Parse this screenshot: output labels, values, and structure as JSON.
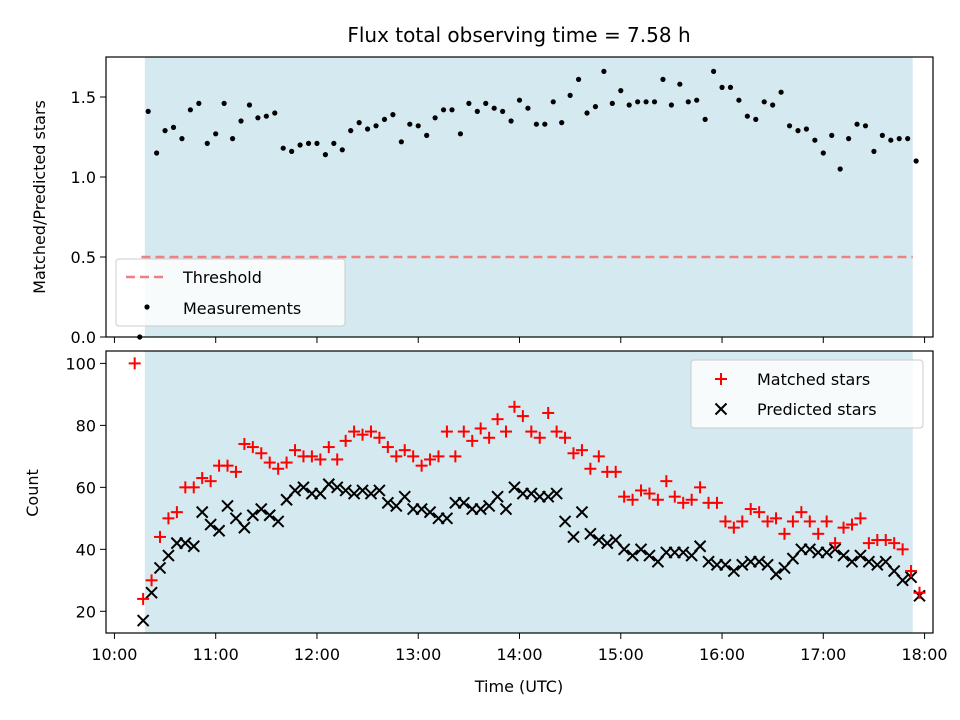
{
  "title": "Flux total observing time = 7.58 h",
  "colors": {
    "band": "#d4eaf0",
    "threshold": "#f08080",
    "matched": "#ff0000",
    "predicted": "#000000",
    "measurements": "#000000"
  },
  "chart_data": [
    {
      "type": "scatter",
      "panel": "top",
      "ylabel": "Matched/Predicted stars",
      "ylim": [
        0,
        1.75
      ],
      "yticks": [
        "0.0",
        "0.5",
        "1.0",
        "1.5"
      ],
      "xlim": [
        "09:55",
        "18:05"
      ],
      "shaded_band": [
        "10:18",
        "17:53"
      ],
      "threshold": 0.5,
      "legend_position": "lower-left",
      "legend": {
        "threshold": "Threshold",
        "measurements": "Measurements"
      },
      "series": [
        {
          "name": "Measurements",
          "x": [
            "10:15",
            "10:20",
            "10:25",
            "10:30",
            "10:35",
            "10:40",
            "10:45",
            "10:50",
            "10:55",
            "11:00",
            "11:05",
            "11:10",
            "11:15",
            "11:20",
            "11:25",
            "11:30",
            "11:35",
            "11:40",
            "11:45",
            "11:50",
            "11:55",
            "12:00",
            "12:05",
            "12:10",
            "12:15",
            "12:20",
            "12:25",
            "12:30",
            "12:35",
            "12:40",
            "12:45",
            "12:50",
            "12:55",
            "13:00",
            "13:05",
            "13:10",
            "13:15",
            "13:20",
            "13:25",
            "13:30",
            "13:35",
            "13:40",
            "13:45",
            "13:50",
            "13:55",
            "14:00",
            "14:05",
            "14:10",
            "14:15",
            "14:20",
            "14:25",
            "14:30",
            "14:35",
            "14:40",
            "14:45",
            "14:50",
            "14:55",
            "15:00",
            "15:05",
            "15:10",
            "15:15",
            "15:20",
            "15:25",
            "15:30",
            "15:35",
            "15:40",
            "15:45",
            "15:50",
            "15:55",
            "16:00",
            "16:05",
            "16:10",
            "16:15",
            "16:20",
            "16:25",
            "16:30",
            "16:35",
            "16:40",
            "16:45",
            "16:50",
            "16:55",
            "17:00",
            "17:05",
            "17:10",
            "17:15",
            "17:20",
            "17:25",
            "17:30",
            "17:35",
            "17:40",
            "17:45",
            "17:50",
            "17:55"
          ],
          "values": [
            0.0,
            1.41,
            1.15,
            1.29,
            1.31,
            1.24,
            1.42,
            1.46,
            1.21,
            1.27,
            1.46,
            1.24,
            1.35,
            1.45,
            1.37,
            1.38,
            1.4,
            1.18,
            1.16,
            1.2,
            1.21,
            1.21,
            1.14,
            1.21,
            1.17,
            1.29,
            1.34,
            1.3,
            1.32,
            1.36,
            1.39,
            1.22,
            1.33,
            1.32,
            1.26,
            1.37,
            1.42,
            1.42,
            1.27,
            1.46,
            1.41,
            1.46,
            1.43,
            1.41,
            1.35,
            1.48,
            1.43,
            1.33,
            1.33,
            1.47,
            1.34,
            1.51,
            1.61,
            1.4,
            1.44,
            1.66,
            1.46,
            1.54,
            1.45,
            1.47,
            1.47,
            1.47,
            1.61,
            1.45,
            1.58,
            1.47,
            1.48,
            1.36,
            1.66,
            1.56,
            1.56,
            1.48,
            1.38,
            1.36,
            1.47,
            1.45,
            1.53,
            1.32,
            1.29,
            1.3,
            1.23,
            1.15,
            1.26,
            1.05,
            1.24,
            1.33,
            1.32,
            1.16,
            1.26,
            1.23,
            1.24,
            1.24,
            1.1
          ]
        }
      ]
    },
    {
      "type": "scatter",
      "panel": "bottom",
      "xlabel": "Time (UTC)",
      "ylabel": "Count",
      "ylim": [
        13,
        104
      ],
      "yticks": [
        "20",
        "40",
        "60",
        "80",
        "100"
      ],
      "xlim": [
        "09:55",
        "18:05"
      ],
      "xticks": [
        "10:00",
        "11:00",
        "12:00",
        "13:00",
        "14:00",
        "15:00",
        "16:00",
        "17:00",
        "18:00"
      ],
      "shaded_band": [
        "10:18",
        "17:53"
      ],
      "legend_position": "upper-right",
      "series": [
        {
          "name": "Matched stars",
          "marker": "plus",
          "x": [
            "10:12",
            "10:17",
            "10:22",
            "10:27",
            "10:32",
            "10:37",
            "10:42",
            "10:47",
            "10:52",
            "10:57",
            "11:02",
            "11:07",
            "11:12",
            "11:17",
            "11:22",
            "11:27",
            "11:32",
            "11:37",
            "11:42",
            "11:47",
            "11:52",
            "11:57",
            "12:02",
            "12:07",
            "12:12",
            "12:17",
            "12:22",
            "12:27",
            "12:32",
            "12:37",
            "12:42",
            "12:47",
            "12:52",
            "12:57",
            "13:02",
            "13:07",
            "13:12",
            "13:17",
            "13:22",
            "13:27",
            "13:32",
            "13:37",
            "13:42",
            "13:47",
            "13:52",
            "13:57",
            "14:02",
            "14:07",
            "14:12",
            "14:17",
            "14:22",
            "14:27",
            "14:32",
            "14:37",
            "14:42",
            "14:47",
            "14:52",
            "14:57",
            "15:02",
            "15:07",
            "15:12",
            "15:17",
            "15:22",
            "15:27",
            "15:32",
            "15:37",
            "15:42",
            "15:47",
            "15:52",
            "15:57",
            "16:02",
            "16:07",
            "16:12",
            "16:17",
            "16:22",
            "16:27",
            "16:32",
            "16:37",
            "16:42",
            "16:47",
            "16:52",
            "16:57",
            "17:02",
            "17:07",
            "17:12",
            "17:17",
            "17:22",
            "17:27",
            "17:32",
            "17:37",
            "17:42",
            "17:47",
            "17:52",
            "17:57"
          ],
          "values": [
            100,
            24,
            30,
            44,
            50,
            52,
            60,
            60,
            63,
            62,
            67,
            67,
            65,
            74,
            73,
            71,
            68,
            66,
            68,
            72,
            70,
            70,
            69,
            73,
            69,
            75,
            78,
            77,
            78,
            76,
            73,
            70,
            72,
            70,
            67,
            69,
            70,
            78,
            70,
            78,
            75,
            79,
            76,
            82,
            78,
            86,
            83,
            78,
            76,
            84,
            78,
            76,
            71,
            72,
            66,
            70,
            65,
            65,
            57,
            56,
            59,
            58,
            56,
            62,
            57,
            55,
            56,
            60,
            55,
            55,
            49,
            47,
            49,
            53,
            52,
            49,
            50,
            45,
            49,
            52,
            49,
            45,
            49,
            42,
            47,
            48,
            50,
            42,
            43,
            43,
            42,
            40,
            33,
            26
          ]
        },
        {
          "name": "Predicted stars",
          "marker": "x",
          "x": [
            "10:17",
            "10:22",
            "10:27",
            "10:32",
            "10:37",
            "10:42",
            "10:47",
            "10:52",
            "10:57",
            "11:02",
            "11:07",
            "11:12",
            "11:17",
            "11:22",
            "11:27",
            "11:32",
            "11:37",
            "11:42",
            "11:47",
            "11:52",
            "11:57",
            "12:02",
            "12:07",
            "12:12",
            "12:17",
            "12:22",
            "12:27",
            "12:32",
            "12:37",
            "12:42",
            "12:47",
            "12:52",
            "12:57",
            "13:02",
            "13:07",
            "13:12",
            "13:17",
            "13:22",
            "13:27",
            "13:32",
            "13:37",
            "13:42",
            "13:47",
            "13:52",
            "13:57",
            "14:02",
            "14:07",
            "14:12",
            "14:17",
            "14:22",
            "14:27",
            "14:32",
            "14:37",
            "14:42",
            "14:47",
            "14:52",
            "14:57",
            "15:02",
            "15:07",
            "15:12",
            "15:17",
            "15:22",
            "15:27",
            "15:32",
            "15:37",
            "15:42",
            "15:47",
            "15:52",
            "15:57",
            "16:02",
            "16:07",
            "16:12",
            "16:17",
            "16:22",
            "16:27",
            "16:32",
            "16:37",
            "16:42",
            "16:47",
            "16:52",
            "16:57",
            "17:02",
            "17:07",
            "17:12",
            "17:17",
            "17:22",
            "17:27",
            "17:32",
            "17:37",
            "17:42",
            "17:47",
            "17:52",
            "17:57"
          ],
          "values": [
            17,
            26,
            34,
            38,
            42,
            42,
            41,
            52,
            48,
            46,
            54,
            50,
            47,
            51,
            53,
            51,
            49,
            56,
            59,
            60,
            58,
            58,
            61,
            60,
            59,
            58,
            59,
            58,
            59,
            55,
            54,
            57,
            53,
            53,
            52,
            50,
            50,
            55,
            55,
            53,
            53,
            54,
            57,
            53,
            60,
            58,
            58,
            57,
            57,
            58,
            49,
            44,
            52,
            45,
            43,
            42,
            43,
            40,
            38,
            40,
            38,
            36,
            39,
            39,
            39,
            38,
            41,
            36,
            35,
            35,
            33,
            35,
            36,
            36,
            35,
            32,
            34,
            37,
            40,
            40,
            39,
            39,
            40,
            38,
            36,
            38,
            36,
            35,
            36,
            33,
            30,
            31,
            25
          ]
        }
      ]
    }
  ]
}
